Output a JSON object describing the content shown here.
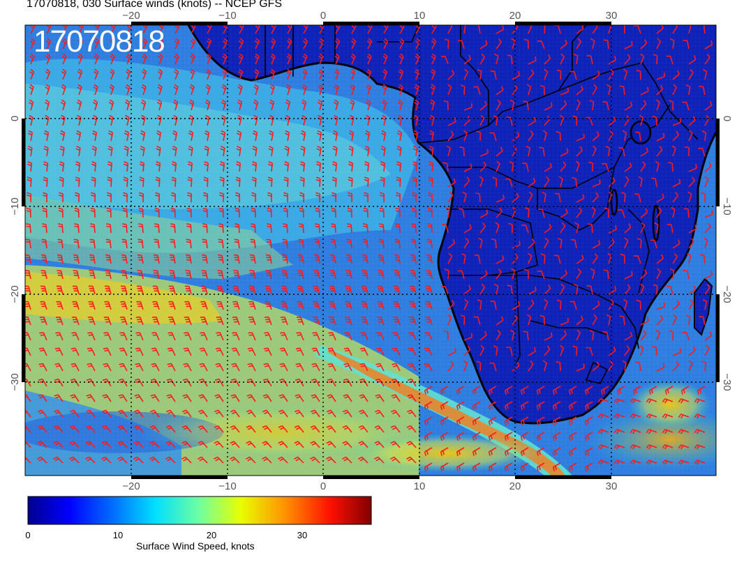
{
  "figure": {
    "title": "17070818, 030 Surface winds (knots) -- NCEP GFS",
    "date_stamp": "17070818",
    "colorbar_label": "Surface Wind Speed, knots"
  },
  "axes": {
    "lon_ticks": [
      "−20",
      "−10",
      "0",
      "10",
      "20",
      "30"
    ],
    "lat_ticks": [
      "0",
      "−10",
      "−20",
      "−30"
    ],
    "lon_range": [
      -30,
      42
    ],
    "lat_range": [
      -40,
      9
    ]
  },
  "colorbar": {
    "ticks": [
      "0",
      "10",
      "20",
      "30"
    ],
    "range": [
      0,
      38
    ],
    "colors": [
      "#00008f",
      "#0000ff",
      "#0080ff",
      "#00ffff",
      "#80ff80",
      "#ffff00",
      "#ff8000",
      "#ff0000",
      "#800000"
    ]
  },
  "colors": {
    "barb": "#ff1a1a",
    "land": "#0a1fb0",
    "coast": "#000000"
  }
}
